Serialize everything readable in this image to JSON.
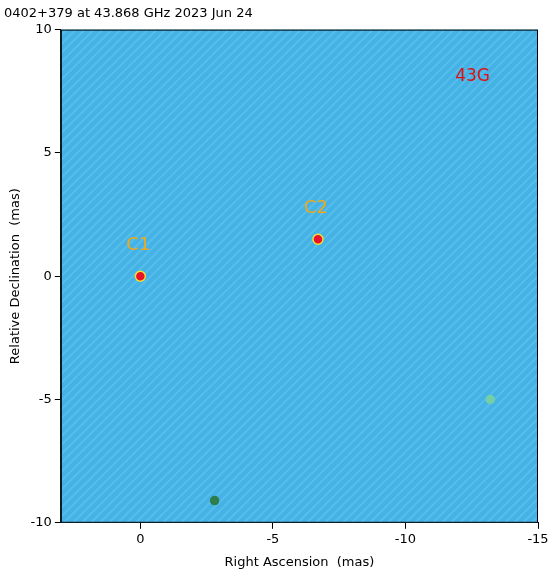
{
  "chart_data": {
    "type": "scatter",
    "title": "0402+379 at 43.868 GHz 2023 Jun 24",
    "annotation": "43G",
    "x_label": "Right Ascension  (mas)",
    "y_label": "Relative Declination  (mas)",
    "xlim": [
      3,
      -15
    ],
    "xticks": [
      0,
      -5,
      -10,
      -15
    ],
    "ylim": [
      -10,
      10
    ],
    "yticks": [
      -10,
      -5,
      0,
      5,
      10
    ],
    "grid": false,
    "marker": "circle",
    "points": [
      {
        "x": 0,
        "y": 0,
        "label": "C1",
        "color": "#e8102a"
      },
      {
        "x": -6.7,
        "y": 1.5,
        "label": "C2",
        "color": "#e8102a"
      },
      {
        "x": -13.2,
        "y": -5.0,
        "color": "#74cfa6"
      },
      {
        "x": -2.8,
        "y": -9.1,
        "color": "#2e7d4a"
      }
    ]
  }
}
